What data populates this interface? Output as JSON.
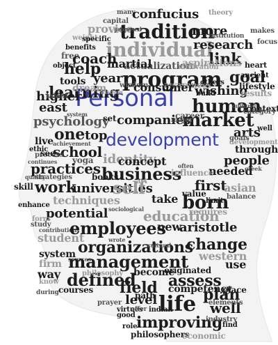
{
  "colors": {
    "dark": "#1c1c1c",
    "mid": "#555555",
    "light": "#9a9a9a",
    "accent": "#3a3fae"
  },
  "title_words": {
    "personal": "Personal",
    "development": "development"
  },
  "words": [
    "many",
    "confucius",
    "capital",
    "theory",
    "provide",
    "tradition",
    "more",
    "weight",
    "proposed",
    "specific",
    "individual",
    "research",
    "focus",
    "benefits",
    "institution",
    "free",
    "coach",
    "link",
    "makes",
    "object",
    "help",
    "actualization",
    "motivation",
    "heart",
    "year",
    "program",
    "goal",
    "ancient",
    "tools",
    "wisdom",
    "awareness",
    "aspirations",
    "lifestyle",
    "learning",
    "dream",
    "consumer",
    "others",
    "higher",
    "wishing",
    "talent",
    "results",
    "east",
    "human",
    "build",
    "cultural",
    "system",
    "context",
    "career",
    "market",
    "psychology",
    "set",
    "companies",
    "major",
    "one",
    "top",
    "arts",
    "live",
    "achievement",
    "development",
    "well",
    "school",
    "goals",
    "through",
    "process",
    "yoga",
    "identity",
    "people",
    "practices",
    "continues",
    "concept",
    "books",
    "needed",
    "quality",
    "business",
    "influence",
    "greek",
    "skill",
    "strategies",
    "work",
    "universities",
    "first",
    "asian",
    "techniques",
    "self",
    "value",
    "balance",
    "potential",
    "take",
    "limit",
    "form",
    "sociological",
    "born",
    "education",
    "requires",
    "contributions",
    "employees",
    "new",
    "aristotle",
    "student",
    "organizations",
    "change",
    "system",
    "wrote",
    "firm",
    "sources",
    "management",
    "western",
    "way",
    "defined",
    "use",
    "assess",
    "plan",
    "cultural",
    "philosophy",
    "become",
    "originated",
    "field",
    "courses",
    "level",
    "path",
    "life",
    "competency",
    "place",
    "prayer",
    "virtues",
    "good",
    "indian",
    "well",
    "improving",
    "role",
    "philosophers",
    "economic",
    "industry",
    "find",
    "during",
    "offer",
    "know",
    "study",
    "enhance",
    "ethic",
    "elements",
    "art",
    "martial",
    "often",
    "category",
    "wisdom",
    "see"
  ]
}
